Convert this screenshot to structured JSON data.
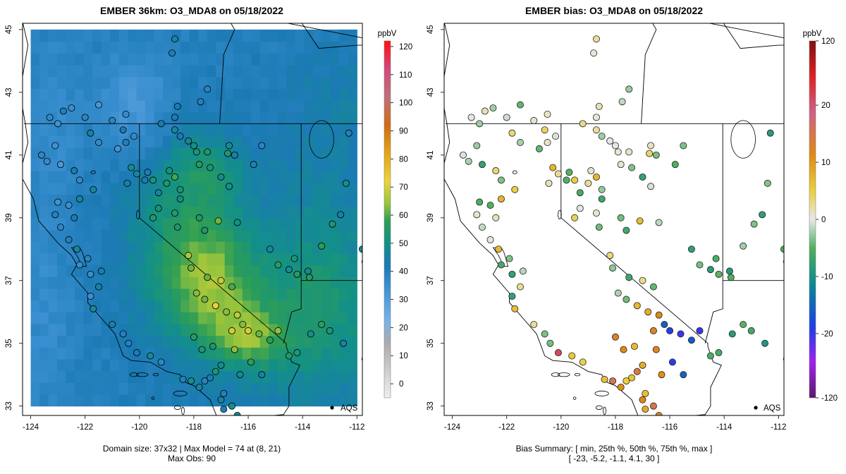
{
  "chart_data": [
    {
      "type": "heatmap",
      "title": "EMBER 36km: O3_MDA8 on 05/18/2022",
      "xlim": [
        -124.3,
        -111.8
      ],
      "ylim": [
        32.7,
        45.2
      ],
      "x_ticks": [
        "-124",
        "-122",
        "-120",
        "-118",
        "-116",
        "-114",
        "-112"
      ],
      "y_ticks": [
        "33",
        "35",
        "37",
        "39",
        "41",
        "43",
        "45"
      ],
      "colorbar": {
        "unit": "ppbV",
        "range": [
          -5,
          122
        ],
        "ticks": [
          "0",
          "10",
          "20",
          "30",
          "40",
          "50",
          "60",
          "70",
          "80",
          "90",
          "100",
          "110",
          "120"
        ],
        "stops": [
          {
            "v": -5,
            "c": "#efefef"
          },
          {
            "v": 15,
            "c": "#aaaaaa"
          },
          {
            "v": 22,
            "c": "#7ab4e8"
          },
          {
            "v": 35,
            "c": "#3a8fd0"
          },
          {
            "v": 42,
            "c": "#1b7ab4"
          },
          {
            "v": 50,
            "c": "#139088"
          },
          {
            "v": 58,
            "c": "#2e9e55"
          },
          {
            "v": 64,
            "c": "#98c43c"
          },
          {
            "v": 72,
            "c": "#ead43a"
          },
          {
            "v": 82,
            "c": "#e3a418"
          },
          {
            "v": 92,
            "c": "#cf6c14"
          },
          {
            "v": 102,
            "c": "#c0707a"
          },
          {
            "v": 112,
            "c": "#d4487a"
          },
          {
            "v": 122,
            "c": "#ff1010"
          }
        ]
      },
      "marker_label": "AQS",
      "footer": [
        "Domain size: 37x32 | Max Model = 74 at (8, 21)",
        "Max Obs: 90"
      ]
    },
    {
      "type": "scatter",
      "title": "EMBER bias: O3_MDA8 on 05/18/2022",
      "xlim": [
        -124.3,
        -111.8
      ],
      "ylim": [
        32.7,
        45.2
      ],
      "x_ticks": [
        "-124",
        "-122",
        "-120",
        "-118",
        "-116",
        "-114",
        "-112"
      ],
      "y_ticks": [
        "33",
        "35",
        "37",
        "39",
        "41",
        "43",
        "45"
      ],
      "colorbar": {
        "unit": "ppbV",
        "ticks": [
          "-120",
          "-20",
          "-10",
          "0",
          "10",
          "20",
          "120"
        ],
        "stops": [
          {
            "p": 0.0,
            "c": "#5a1a6a"
          },
          {
            "p": 0.1,
            "c": "#a020f0"
          },
          {
            "p": 0.2,
            "c": "#1a40e8"
          },
          {
            "p": 0.32,
            "c": "#0a8a90"
          },
          {
            "p": 0.42,
            "c": "#50b060"
          },
          {
            "p": 0.5,
            "c": "#e8e8e8"
          },
          {
            "p": 0.58,
            "c": "#e8d040"
          },
          {
            "p": 0.68,
            "c": "#e08a10"
          },
          {
            "p": 0.8,
            "c": "#d06088"
          },
          {
            "p": 0.9,
            "c": "#e02020"
          },
          {
            "p": 1.0,
            "c": "#801010"
          }
        ]
      },
      "marker_label": "AQS",
      "footer": [
        "Bias Summary: [ min, 25th %, 50th %, 75th %, max ]",
        "[ -23,   -5.2,   -1.1,   4.1,   30 ]"
      ]
    }
  ]
}
